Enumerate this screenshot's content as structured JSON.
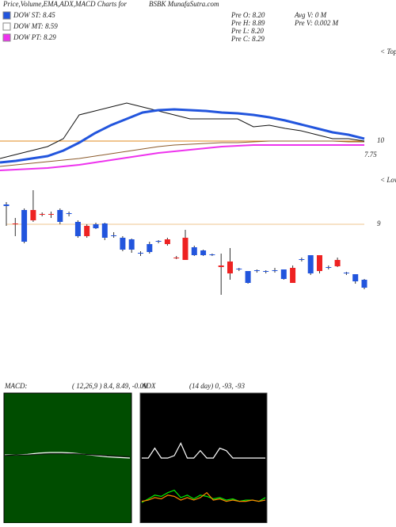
{
  "header": {
    "title": "Price,Volume,EMA,ADX,MACD Charts for",
    "site": "BSBK MunafaSutra.com"
  },
  "legend": [
    {
      "label": "DOW ST: 8.45",
      "color": "#2255dd"
    },
    {
      "label": "DOW MT: 8.59",
      "color": "#ffffff"
    },
    {
      "label": "DOW PT: 8.29",
      "color": "#ee33ee"
    }
  ],
  "stats": [
    "Pre  O: 8.20",
    "Pre  H: 8.89",
    "Pre  L: 8.20",
    "Pre  C: 8.29",
    "Avg V: 0  M",
    "Pre  V: 0.002  M"
  ],
  "chart_data": [
    {
      "type": "line",
      "ylim": [
        9.16,
        12.16
      ],
      "yticks": [
        10
      ],
      "annotations": [
        "7.75",
        "< Tops"
      ],
      "series": [
        {
          "color": "#111111",
          "width": 1,
          "values": [
            9.56,
            9.66,
            9.76,
            9.86,
            10.06,
            10.66,
            10.76,
            10.86,
            10.96,
            10.86,
            10.76,
            10.66,
            10.56,
            10.56,
            10.56,
            10.56,
            10.36,
            10.4,
            10.32,
            10.26,
            10.16,
            10.06,
            10.06,
            10
          ]
        },
        {
          "color": "#2255dd",
          "width": 3,
          "values": [
            9.46,
            9.5,
            9.56,
            9.62,
            9.76,
            9.96,
            10.2,
            10.4,
            10.56,
            10.72,
            10.78,
            10.8,
            10.78,
            10.76,
            10.72,
            10.7,
            10.66,
            10.6,
            10.52,
            10.42,
            10.32,
            10.22,
            10.16,
            10.06
          ]
        },
        {
          "color": "#8b5a2b",
          "width": 1,
          "values": [
            9.36,
            9.4,
            9.44,
            9.48,
            9.52,
            9.56,
            9.62,
            9.68,
            9.74,
            9.8,
            9.86,
            9.9,
            9.92,
            9.94,
            9.96,
            9.96,
            9.98,
            10,
            10,
            10,
            10,
            10,
            9.98,
            9.98
          ]
        },
        {
          "color": "#ee33ee",
          "width": 2,
          "values": [
            9.26,
            9.28,
            9.3,
            9.32,
            9.36,
            9.4,
            9.46,
            9.52,
            9.58,
            9.64,
            9.7,
            9.74,
            9.78,
            9.82,
            9.86,
            9.88,
            9.9,
            9.9,
            9.9,
            9.9,
            9.9,
            9.9,
            9.9,
            9.9
          ]
        }
      ]
    },
    {
      "type": "candlestick",
      "ylim": [
        8.03,
        9.43
      ],
      "yticks": [
        9
      ],
      "annotations": [
        "< Lows"
      ],
      "up_color": "#2255dd",
      "down_color": "#ee2222",
      "open": [
        9.23,
        9.01,
        8.78,
        9.18,
        9.13,
        9.13,
        9.03,
        9.13,
        8.85,
        8.98,
        8.95,
        8.83,
        8.85,
        8.68,
        8.68,
        8.63,
        8.65,
        8.78,
        8.81,
        8.58,
        8.83,
        8.61,
        8.61,
        8.61,
        8.48,
        8.53,
        8.43,
        8.26,
        8.41,
        8.4,
        8.41,
        8.31,
        8.45,
        8.55,
        8.38,
        8.61,
        8.45,
        8.55,
        8.38,
        8.28,
        8.2
      ],
      "high": [
        9.28,
        9.08,
        9.2,
        9.43,
        9.15,
        9.16,
        9.2,
        9.16,
        9.05,
        9,
        9.02,
        9.02,
        8.9,
        8.85,
        8.82,
        8.66,
        8.78,
        8.8,
        8.83,
        8.6,
        8.93,
        8.73,
        8.68,
        8.63,
        8.63,
        8.7,
        8.45,
        8.41,
        8.43,
        8.42,
        8.45,
        8.43,
        8.48,
        8.58,
        8.61,
        8.61,
        8.48,
        8.58,
        8.4,
        8.37,
        8.31
      ],
      "low": [
        8.98,
        8.85,
        8.76,
        9.03,
        9.1,
        9.08,
        9,
        9.1,
        8.83,
        8.83,
        8.94,
        8.8,
        8.83,
        8.66,
        8.64,
        8.6,
        8.63,
        8.76,
        8.73,
        8.56,
        8.55,
        8.6,
        8.6,
        8.6,
        8.11,
        8.3,
        8.41,
        8.25,
        8.39,
        8.38,
        8.39,
        8.3,
        8.26,
        8.53,
        8.36,
        8.38,
        8.43,
        8.46,
        8.36,
        8.25,
        8.18
      ],
      "close": [
        9.25,
        9,
        9.18,
        9.05,
        9.12,
        9.12,
        9.18,
        9.14,
        9.03,
        8.85,
        9,
        9.01,
        8.86,
        8.83,
        8.81,
        8.64,
        8.75,
        8.79,
        8.75,
        8.57,
        8.55,
        8.71,
        8.67,
        8.62,
        8.46,
        8.38,
        8.44,
        8.41,
        8.42,
        8.41,
        8.42,
        8.43,
        8.26,
        8.56,
        8.61,
        8.41,
        8.46,
        8.47,
        8.39,
        8.37,
        8.3
      ]
    },
    {
      "type": "line",
      "title": "MACD:",
      "subtitle": "( 12,26,9 ) 8.4, 8.49, -0.09",
      "ylim": [
        -1,
        1
      ],
      "series": [
        {
          "color": "#ffffff",
          "values": [
            0.05,
            0.05,
            0.06,
            0.08,
            0.09,
            0.09,
            0.08,
            0.06,
            0.04,
            0.02,
            0.01,
            0.0
          ]
        },
        {
          "color": "#111111",
          "values": [
            0.04,
            0.05,
            0.05,
            0.06,
            0.07,
            0.07,
            0.07,
            0.06,
            0.05,
            0.04,
            0.03,
            0.02
          ]
        }
      ]
    },
    {
      "type": "line",
      "title": "ADX",
      "subtitle": "(14  day) 0, -93, -93",
      "ylim": [
        0,
        100
      ],
      "series": [
        {
          "color": "#ffffff",
          "values": [
            50,
            50,
            58,
            50,
            50,
            52,
            62,
            50,
            50,
            56,
            50,
            50,
            58,
            56,
            50,
            50,
            50,
            50,
            50,
            50
          ]
        },
        {
          "color": "#00ee00",
          "values": [
            14,
            17,
            20,
            19,
            22,
            24,
            18,
            20,
            17,
            20,
            19,
            17,
            18,
            16,
            17,
            15,
            16,
            16,
            15,
            18
          ]
        },
        {
          "color": "#ff8800",
          "values": [
            15,
            16,
            18,
            17,
            20,
            19,
            16,
            18,
            16,
            18,
            22,
            16,
            17,
            15,
            16,
            15,
            15,
            16,
            15,
            16
          ]
        }
      ]
    }
  ]
}
